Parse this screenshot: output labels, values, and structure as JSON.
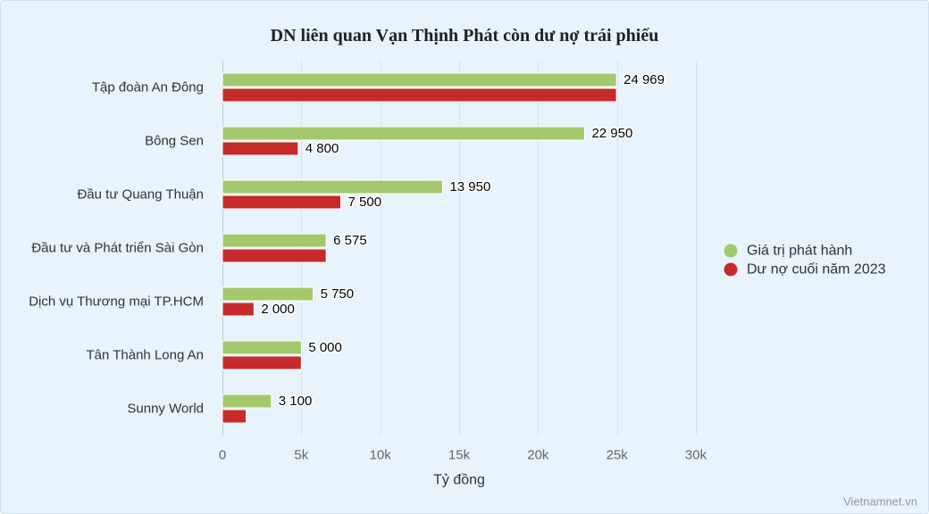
{
  "chart_data": {
    "type": "bar",
    "orientation": "horizontal",
    "title": "DN liên quan Vạn Thịnh Phát còn dư nợ trái phiếu",
    "categories": [
      "Tập đoàn An Đông",
      "Bông Sen",
      "Đầu tư Quang Thuận",
      "Đầu tư và Phát triển Sài Gòn",
      "Dịch vụ Thương mại TP.HCM",
      "Tân Thành Long An",
      "Sunny World"
    ],
    "series": [
      {
        "name": "Giá trị phát hành",
        "color": "#a4c86c",
        "values": [
          24969,
          22950,
          13950,
          6575,
          5750,
          5000,
          3100
        ],
        "data_labels": [
          "24 969",
          "22 950",
          "13 950",
          "6 575",
          "5 750",
          "5 000",
          "3 100"
        ]
      },
      {
        "name": "Dư nợ cuối năm 2023",
        "color": "#c72a2a",
        "values": [
          24969,
          4800,
          7500,
          6575,
          2000,
          5000,
          1500
        ],
        "data_labels": [
          null,
          "4 800",
          "7 500",
          null,
          "2 000",
          null,
          null
        ]
      }
    ],
    "xlabel": "Tỷ đồng",
    "xlim": [
      0,
      30000
    ],
    "ticks": [
      0,
      5000,
      10000,
      15000,
      20000,
      25000,
      30000
    ],
    "tick_labels": [
      "0",
      "5k",
      "10k",
      "15k",
      "20k",
      "25k",
      "30k"
    ],
    "grid": true,
    "legend_position": "right"
  },
  "credit": "Vietnamnet.vn"
}
